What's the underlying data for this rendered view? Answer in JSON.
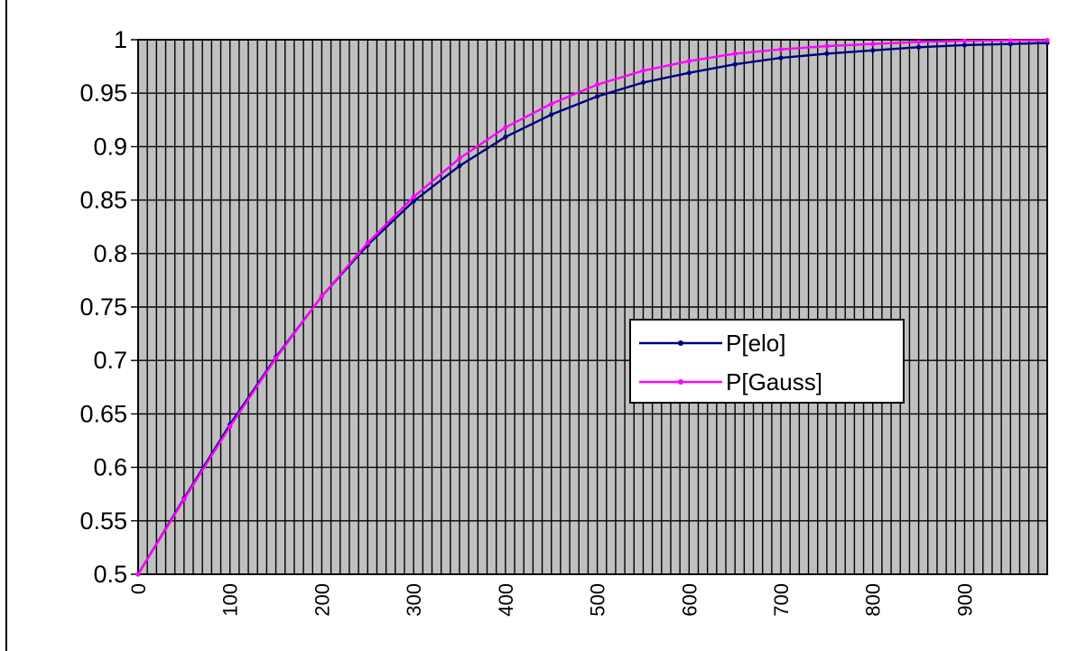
{
  "chart_data": {
    "type": "line",
    "title": "",
    "xlabel": "",
    "ylabel": "",
    "xlim": [
      0,
      990
    ],
    "ylim": [
      0.5,
      1
    ],
    "x_step": 10,
    "y_ticks": [
      "0.5",
      "0.55",
      "0.6",
      "0.65",
      "0.7",
      "0.75",
      "0.8",
      "0.85",
      "0.9",
      "0.95",
      "1"
    ],
    "x_ticks": [
      "0",
      "100",
      "200",
      "300",
      "400",
      "500",
      "600",
      "700",
      "800",
      "900"
    ],
    "grid": true,
    "plot_background": "#c0c0c0",
    "legend_position": "center-right",
    "series": [
      {
        "name": "P[elo]",
        "color": "#000080",
        "marker": "dot",
        "x": [
          0,
          50,
          100,
          150,
          200,
          250,
          300,
          350,
          400,
          450,
          500,
          550,
          600,
          650,
          700,
          750,
          800,
          850,
          900,
          950,
          990
        ],
        "values": [
          0.5,
          0.571,
          0.64,
          0.703,
          0.76,
          0.808,
          0.849,
          0.882,
          0.909,
          0.93,
          0.947,
          0.96,
          0.969,
          0.977,
          0.983,
          0.987,
          0.99,
          0.993,
          0.995,
          0.996,
          0.997
        ]
      },
      {
        "name": "P[Gauss]",
        "color": "#ff00ff",
        "marker": "dot",
        "x": [
          0,
          50,
          100,
          150,
          200,
          250,
          300,
          350,
          400,
          450,
          500,
          550,
          600,
          650,
          700,
          750,
          800,
          850,
          900,
          950,
          990
        ],
        "values": [
          0.5,
          0.57,
          0.638,
          0.702,
          0.76,
          0.81,
          0.853,
          0.889,
          0.918,
          0.94,
          0.958,
          0.971,
          0.98,
          0.987,
          0.991,
          0.994,
          0.996,
          0.998,
          0.999,
          0.9993,
          0.9995
        ]
      }
    ]
  }
}
